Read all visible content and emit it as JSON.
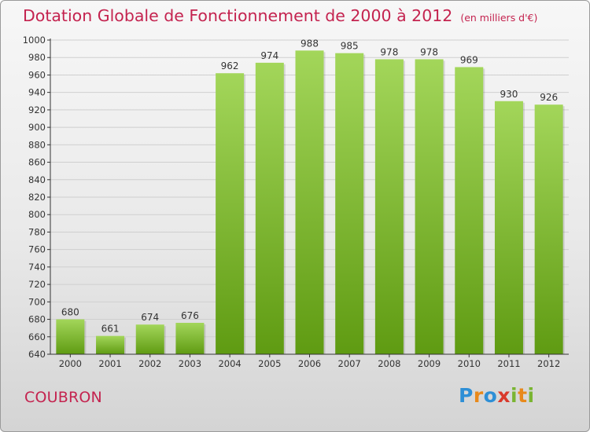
{
  "header": {
    "title": "Dotation Globale de Fonctionnement de 2000 à 2012",
    "unit_note": "(en milliers d'€)"
  },
  "footer": {
    "commune": "COUBRON",
    "brand": {
      "letters": [
        {
          "char": "P",
          "color": "#2e8fd6"
        },
        {
          "char": "r",
          "color": "#e8891b"
        },
        {
          "char": "o",
          "color": "#2e8fd6"
        },
        {
          "char": "x",
          "color": "#d9392b"
        },
        {
          "char": "i",
          "color": "#7ab532"
        },
        {
          "char": "t",
          "color": "#e8891b"
        },
        {
          "char": "i",
          "color": "#7ab532"
        }
      ]
    }
  },
  "colors": {
    "title": "#c4234f",
    "bar_top": "#a3d65a",
    "bar_bottom": "#5f9b12",
    "grid": "#cfcfcf",
    "axis": "#333333"
  },
  "chart_data": {
    "type": "bar",
    "categories": [
      "2000",
      "2001",
      "2002",
      "2003",
      "2004",
      "2005",
      "2006",
      "2007",
      "2008",
      "2009",
      "2010",
      "2011",
      "2012"
    ],
    "values": [
      680,
      661,
      674,
      676,
      962,
      974,
      988,
      985,
      978,
      978,
      969,
      930,
      926
    ],
    "ylim": [
      640,
      1000
    ],
    "yticks": [
      640,
      660,
      680,
      700,
      720,
      740,
      760,
      780,
      800,
      820,
      840,
      860,
      880,
      900,
      920,
      940,
      960,
      980,
      1000
    ],
    "grid": true,
    "legend": "none"
  }
}
